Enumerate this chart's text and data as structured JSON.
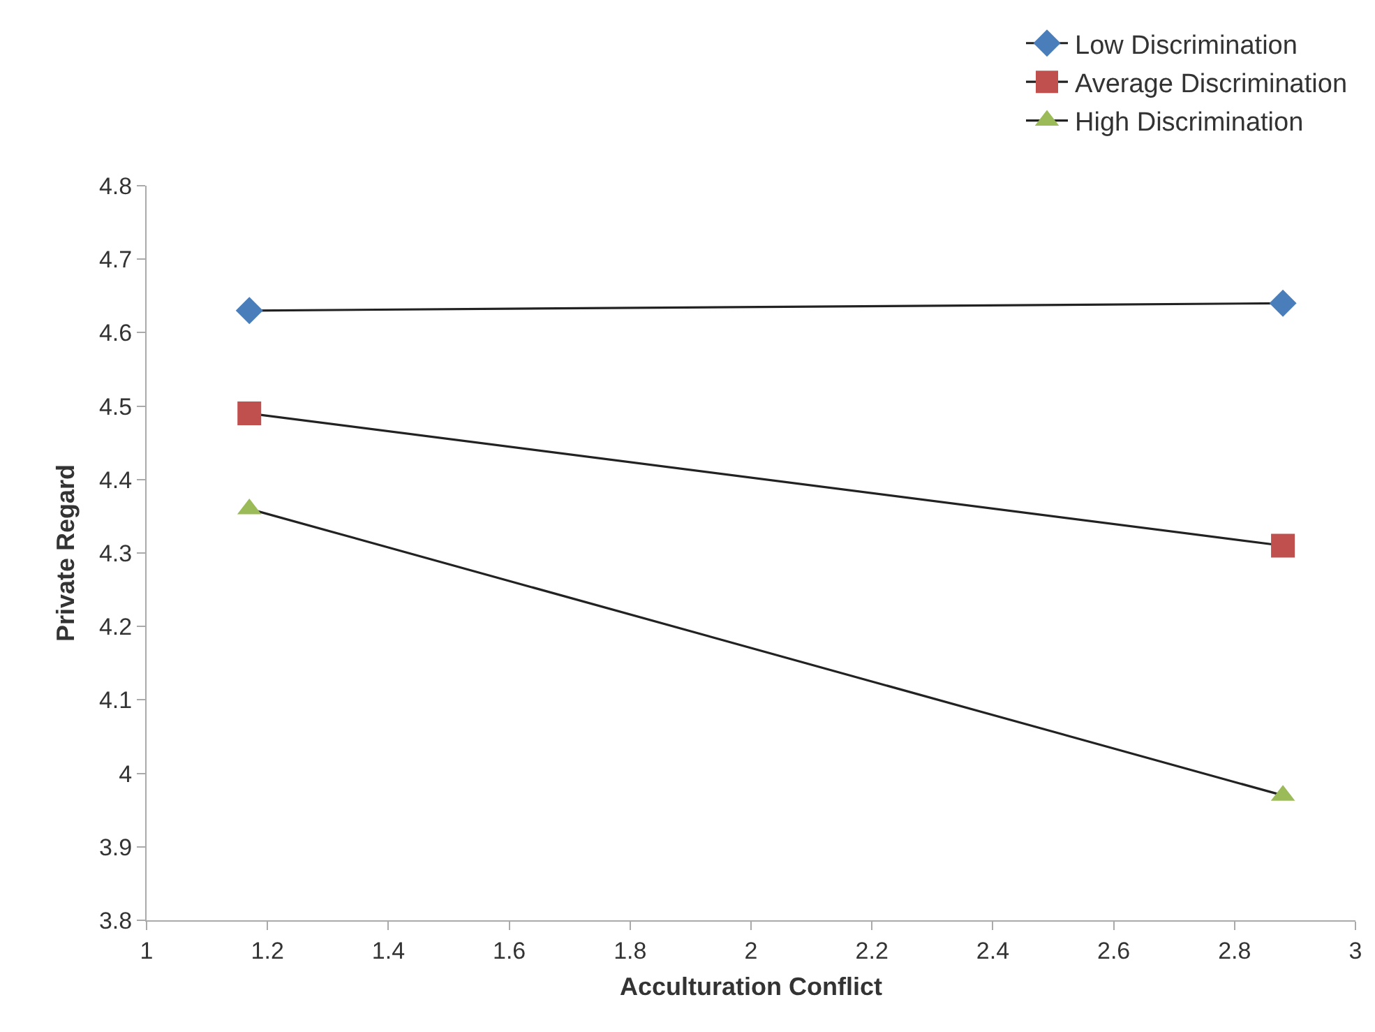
{
  "chart_data": {
    "type": "line",
    "xlabel": "Acculturation Conflict",
    "ylabel": "Private Regard",
    "x": [
      1.17,
      2.88
    ],
    "series": [
      {
        "name": "Low Discrimination",
        "color": "#4a7ebb",
        "marker": "diamond",
        "values": [
          4.63,
          4.64
        ]
      },
      {
        "name": "Average Discrimination",
        "color": "#c0504d",
        "marker": "square",
        "values": [
          4.49,
          4.31
        ]
      },
      {
        "name": "High Discrimination",
        "color": "#9bbb59",
        "marker": "triangle",
        "values": [
          4.36,
          3.97
        ]
      }
    ],
    "xlim": [
      1,
      3
    ],
    "xticks": [
      1,
      1.2,
      1.4,
      1.6,
      1.8,
      2,
      2.2,
      2.4,
      2.6,
      2.8,
      3
    ],
    "ylim": [
      3.8,
      4.8
    ],
    "yticks": [
      3.8,
      3.9,
      4,
      4.1,
      4.2,
      4.3,
      4.4,
      4.5,
      4.6,
      4.7,
      4.8
    ],
    "grid": false,
    "legend": "top right",
    "line_style": "solid"
  }
}
